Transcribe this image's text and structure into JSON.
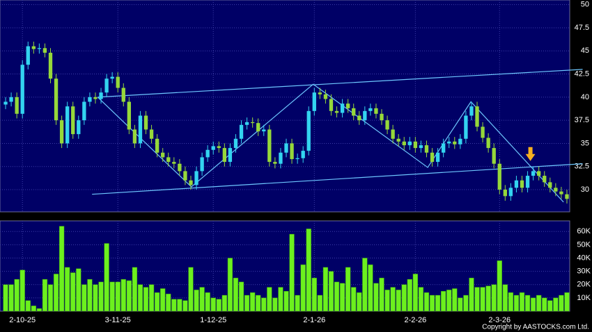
{
  "chart_data": {
    "type": "candlestick",
    "categories": [
      null,
      null,
      null,
      "2-10-25",
      null,
      null,
      null,
      null,
      null,
      null,
      null,
      null,
      null,
      null,
      null,
      null,
      null,
      null,
      null,
      null,
      "3-11-25",
      null,
      null,
      null,
      null,
      null,
      null,
      null,
      null,
      null,
      null,
      null,
      null,
      null,
      null,
      null,
      null,
      "1-12-25",
      null,
      null,
      null,
      null,
      null,
      null,
      null,
      null,
      null,
      null,
      null,
      null,
      null,
      null,
      null,
      null,
      null,
      "2-1-26",
      null,
      null,
      null,
      null,
      null,
      null,
      null,
      null,
      null,
      null,
      null,
      null,
      null,
      null,
      null,
      null,
      null,
      "2-2-26",
      null,
      null,
      null,
      null,
      null,
      null,
      null,
      null,
      null,
      null,
      null,
      null,
      null,
      null,
      "2-3-26",
      null,
      null,
      null,
      null,
      null,
      null,
      null,
      null,
      null,
      null,
      null,
      null
    ],
    "open": [
      39.2,
      39.5,
      40,
      38.2,
      43.5,
      45.5,
      45.2,
      45.3,
      44.8,
      42,
      37.5,
      35,
      39,
      36,
      37.5,
      39.5,
      40,
      39.8,
      40.5,
      42,
      42.2,
      41,
      39.5,
      36.5,
      35,
      38,
      36.5,
      35.5,
      34,
      33.5,
      33,
      32.8,
      32,
      31,
      30.5,
      32,
      33.5,
      34.3,
      34.7,
      34.5,
      33,
      34.5,
      35.5,
      37,
      37.3,
      37.2,
      36.3,
      36.5,
      33,
      32.8,
      34,
      35,
      33.3,
      33.4,
      34.2,
      38.5,
      40.5,
      40.3,
      39.8,
      38.5,
      38.3,
      39.3,
      38.8,
      38,
      37.5,
      38.5,
      38.8,
      38.2,
      37.5,
      36.5,
      35.5,
      35.2,
      34.8,
      35.2,
      34.5,
      34.8,
      34,
      33,
      34,
      35,
      35.2,
      34.9,
      35.5,
      38,
      39,
      36.8,
      35.6,
      34.5,
      32.8,
      30,
      29.3,
      30.2,
      31,
      30.2,
      31.5,
      32,
      31.5,
      30.8,
      30.2,
      29.8,
      29.5
    ],
    "high": [
      40,
      40.5,
      40.5,
      44,
      46,
      46,
      45.8,
      45.8,
      45.3,
      42.5,
      38,
      39.5,
      39.5,
      38,
      40,
      40.5,
      40.5,
      41,
      42.5,
      42.7,
      42.7,
      41.5,
      40,
      37,
      38.5,
      38.5,
      37,
      36,
      34.5,
      34,
      33.5,
      33.3,
      32.5,
      31.5,
      32.5,
      34,
      34.8,
      35.2,
      35.2,
      35,
      35,
      36,
      37.5,
      37.8,
      37.8,
      37.7,
      37,
      37,
      33.5,
      34.5,
      35.5,
      35.5,
      33.9,
      34.7,
      39,
      41,
      41,
      40.8,
      40.3,
      39,
      39.8,
      39.8,
      39.3,
      38.5,
      39,
      39.3,
      39.3,
      38.7,
      38,
      37,
      36,
      35.7,
      35.7,
      35.7,
      35.3,
      35.3,
      34.5,
      34.5,
      35.5,
      35.7,
      35.7,
      36,
      38.5,
      39.5,
      39.5,
      37.3,
      36.1,
      35,
      33.3,
      30.5,
      30.7,
      31.5,
      31.5,
      32,
      32.5,
      32.5,
      32,
      31.3,
      30.7,
      30.3,
      30
    ],
    "low": [
      38.7,
      39,
      37.7,
      37.7,
      43,
      44.7,
      44.7,
      44.3,
      41.5,
      37,
      34.5,
      34.5,
      35.5,
      35.5,
      37,
      39,
      39.3,
      39.3,
      40,
      41.5,
      40.5,
      39,
      36,
      34.5,
      34.5,
      36,
      35,
      33.5,
      33,
      32.5,
      32.3,
      31.5,
      30.5,
      30,
      30,
      31.5,
      33,
      33.8,
      34,
      32.5,
      32.5,
      34,
      35,
      36.5,
      36.7,
      35.8,
      35.8,
      32.5,
      32.3,
      32.3,
      33.5,
      32.8,
      32.8,
      32.9,
      33.7,
      38,
      39.8,
      39.3,
      38,
      37.8,
      37.8,
      38.3,
      37.5,
      37,
      37,
      38,
      37.7,
      37,
      36,
      35,
      34.7,
      34.3,
      34.3,
      34,
      34,
      33.5,
      32.5,
      32.5,
      33.5,
      34.5,
      34.4,
      34.4,
      35,
      37.5,
      36.3,
      35.1,
      34,
      32.3,
      29.5,
      28.8,
      28.8,
      29.7,
      29.7,
      29.7,
      31,
      31,
      30.3,
      29.7,
      29.3,
      29,
      28.5
    ],
    "close": [
      39.5,
      40,
      38.2,
      43.5,
      45.5,
      45.2,
      45.3,
      44.8,
      42,
      37.5,
      35,
      39,
      36,
      37.5,
      39.5,
      40,
      39.8,
      40.5,
      42,
      42.2,
      41,
      39.5,
      36.5,
      35,
      38,
      36.5,
      35.5,
      34,
      33.5,
      33,
      32.8,
      32,
      31,
      30.5,
      32,
      33.5,
      34.3,
      34.7,
      34.5,
      33,
      34.5,
      35.5,
      37,
      37.3,
      37.2,
      36.3,
      36.5,
      33,
      32.8,
      34,
      35,
      33.3,
      33.4,
      34.2,
      38.5,
      40.5,
      40.3,
      39.8,
      38.5,
      38.3,
      39.3,
      38.8,
      38,
      37.5,
      38.5,
      38.8,
      38.2,
      37.5,
      36.5,
      35.5,
      35.2,
      34.8,
      35.2,
      34.5,
      34.8,
      34,
      33,
      34,
      35,
      35.2,
      34.9,
      35.5,
      38,
      39,
      36.8,
      35.6,
      34.5,
      32.8,
      30,
      29.3,
      30.2,
      31,
      30.2,
      31.5,
      32,
      31.5,
      30.8,
      30.2,
      29.8,
      29.5,
      29
    ],
    "up_color": "#33d4f0",
    "down_color": "#96d83a",
    "ylim": [
      27.6,
      50.5
    ],
    "yticks": [
      30,
      32.5,
      35,
      37.5,
      40,
      42.5,
      45,
      47.5,
      50
    ],
    "grid": true,
    "trend_lines": [
      {
        "color": "#6ec8ff",
        "points": [
          [
            16.4,
            40.0
          ],
          [
            102.8,
            43.0
          ]
        ]
      },
      {
        "color": "#6ec8ff",
        "points": [
          [
            15.4,
            29.5
          ],
          [
            102.8,
            32.8
          ]
        ]
      },
      {
        "color": "#6ec8ff",
        "points": [
          [
            16.4,
            40.0
          ],
          [
            33.1,
            30.3
          ],
          [
            54.8,
            41.4
          ],
          [
            75.2,
            32.4
          ],
          [
            82.9,
            39.5
          ],
          [
            99.4,
            28.65
          ]
        ]
      }
    ],
    "arrow": {
      "x": 93.5,
      "y": 33.1,
      "color": "#f5b020"
    },
    "volume": {
      "color": "#6cf01e",
      "values": [
        20000,
        20000,
        24000,
        31000,
        8000,
        4000,
        2000,
        24000,
        20000,
        28000,
        64000,
        33000,
        29000,
        32000,
        20000,
        24000,
        20000,
        22000,
        51000,
        22000,
        22000,
        24000,
        23000,
        33000,
        20000,
        18000,
        20000,
        14000,
        17000,
        13000,
        9000,
        9000,
        8000,
        33000,
        16000,
        18000,
        14000,
        10000,
        9000,
        12000,
        40000,
        25000,
        22000,
        12000,
        14000,
        12000,
        10000,
        18000,
        10000,
        18000,
        15000,
        58000,
        12000,
        35000,
        62000,
        25000,
        12000,
        33000,
        30000,
        22000,
        21000,
        33000,
        18000,
        14000,
        40000,
        35000,
        21000,
        25000,
        16000,
        18000,
        16000,
        20000,
        24000,
        28000,
        18000,
        14000,
        12000,
        12000,
        15000,
        16000,
        17000,
        10000,
        12000,
        25000,
        18000,
        18000,
        19000,
        20000,
        38000,
        20000,
        14000,
        12000,
        14000,
        12000,
        10000,
        12000,
        10000,
        8000,
        10000,
        12000,
        14000
      ],
      "ylim": [
        0,
        68000
      ],
      "yticks": [
        {
          "value": 10000,
          "label": "10K"
        },
        {
          "value": 20000,
          "label": "20K"
        },
        {
          "value": 30000,
          "label": "30K"
        },
        {
          "value": 40000,
          "label": "40K"
        },
        {
          "value": 50000,
          "label": "50K"
        },
        {
          "value": 60000,
          "label": "60K"
        }
      ]
    },
    "copyright": "Copyright by AASTOCKS.com Ltd."
  }
}
